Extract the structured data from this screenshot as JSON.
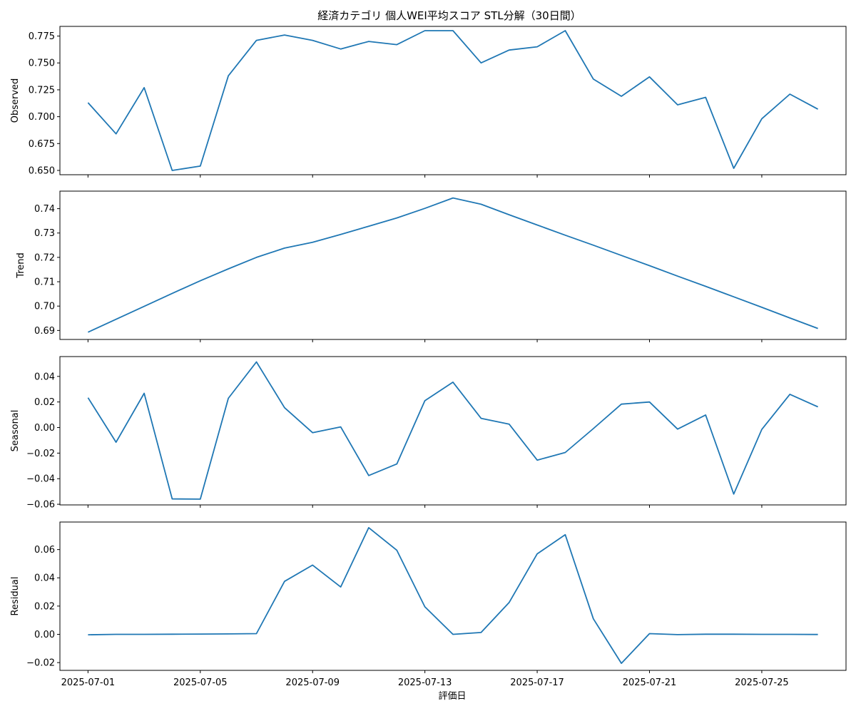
{
  "chart_data": {
    "type": "line",
    "title": "経済カテゴリ 個人WEI平均スコア STL分解（30日間）",
    "xlabel": "評価日",
    "x_ticks": [
      "2025-07-01",
      "2025-07-05",
      "2025-07-09",
      "2025-07-13",
      "2025-07-17",
      "2025-07-21",
      "2025-07-25"
    ],
    "x_dates": [
      "2025-07-01",
      "2025-07-02",
      "2025-07-03",
      "2025-07-04",
      "2025-07-05",
      "2025-07-06",
      "2025-07-07",
      "2025-07-08",
      "2025-07-09",
      "2025-07-10",
      "2025-07-11",
      "2025-07-12",
      "2025-07-13",
      "2025-07-14",
      "2025-07-15",
      "2025-07-16",
      "2025-07-17",
      "2025-07-18",
      "2025-07-19",
      "2025-07-20",
      "2025-07-21",
      "2025-07-22",
      "2025-07-23",
      "2025-07-24",
      "2025-07-25",
      "2025-07-26",
      "2025-07-27"
    ],
    "color": "#1f77b4",
    "xlim": [
      "2025-06-30",
      "2025-07-28"
    ],
    "grid": false,
    "panels": [
      {
        "ylabel": "Observed",
        "ylim": [
          0.646,
          0.784
        ],
        "ticks": [
          "0.650",
          "0.675",
          "0.700",
          "0.725",
          "0.750",
          "0.775"
        ],
        "values": [
          0.713,
          0.684,
          0.727,
          0.65,
          0.654,
          0.738,
          0.771,
          0.776,
          0.771,
          0.763,
          0.77,
          0.767,
          0.78,
          0.78,
          0.75,
          0.762,
          0.765,
          0.78,
          0.735,
          0.719,
          0.737,
          0.711,
          0.718,
          0.652,
          0.698,
          0.721,
          0.707
        ]
      },
      {
        "ylabel": "Trend",
        "ylim": [
          0.6863,
          0.7472
        ],
        "ticks": [
          "0.69",
          "0.70",
          "0.71",
          "0.72",
          "0.73",
          "0.74"
        ],
        "values": [
          0.6893,
          0.6946,
          0.6999,
          0.7052,
          0.7104,
          0.7153,
          0.72,
          0.7238,
          0.7262,
          0.7294,
          0.7328,
          0.7362,
          0.7401,
          0.7444,
          0.7418,
          0.7375,
          0.7333,
          0.7291,
          0.725,
          0.7208,
          0.7166,
          0.7123,
          0.7081,
          0.7038,
          0.6995,
          0.6951,
          0.6908
        ]
      },
      {
        "ylabel": "Seasonal",
        "ylim": [
          -0.0605,
          0.0555
        ],
        "ticks": [
          "−0.06",
          "−0.04",
          "−0.02",
          "0.00",
          "0.02",
          "0.04"
        ],
        "values": [
          0.0233,
          -0.0115,
          0.0268,
          -0.0558,
          -0.056,
          0.0229,
          0.0513,
          0.0155,
          -0.004,
          0.0005,
          -0.0375,
          -0.0285,
          0.021,
          0.0355,
          0.0072,
          0.0027,
          -0.0255,
          -0.0195,
          -0.0008,
          0.0183,
          0.02,
          -0.0012,
          0.0098,
          -0.052,
          -0.0015,
          0.026,
          0.0162
        ]
      },
      {
        "ylabel": "Residual",
        "ylim": [
          -0.0255,
          0.0795
        ],
        "ticks": [
          "−0.02",
          "0.00",
          "0.02",
          "0.04",
          "0.06"
        ],
        "values": [
          -0.0003,
          0.0,
          0.0,
          0.0001,
          0.0002,
          0.0003,
          0.0005,
          0.0375,
          0.049,
          0.0335,
          0.0755,
          0.0595,
          0.0195,
          0.0,
          0.0013,
          0.0225,
          0.057,
          0.0705,
          0.011,
          -0.0205,
          0.0005,
          -0.0002,
          0.0001,
          0.0001,
          0.0,
          0.0,
          -0.0001
        ]
      }
    ]
  }
}
